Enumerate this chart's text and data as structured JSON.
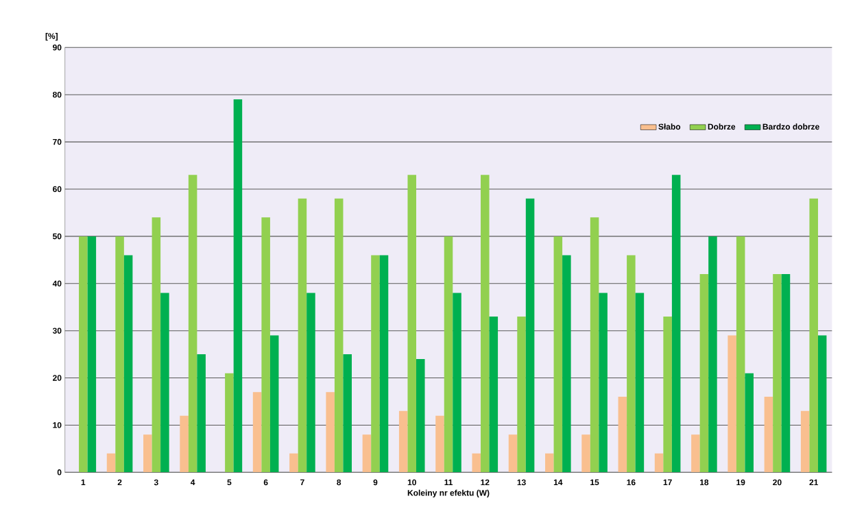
{
  "chart_data": {
    "type": "bar",
    "xlabel": "Koleiny nr efektu (W)",
    "ylabel": "[%]",
    "categories": [
      "1",
      "2",
      "3",
      "4",
      "5",
      "6",
      "7",
      "8",
      "9",
      "10",
      "11",
      "12",
      "13",
      "14",
      "15",
      "16",
      "17",
      "18",
      "19",
      "20",
      "21"
    ],
    "series": [
      {
        "name": "Słabo",
        "color": "#f9bf8f",
        "values": [
          0,
          4,
          8,
          12,
          0,
          17,
          4,
          17,
          8,
          13,
          12,
          4,
          8,
          4,
          8,
          16,
          4,
          8,
          29,
          16,
          13
        ]
      },
      {
        "name": "Dobrze",
        "color": "#92d050",
        "values": [
          50,
          50,
          54,
          63,
          21,
          54,
          58,
          58,
          46,
          63,
          50,
          63,
          33,
          50,
          54,
          46,
          33,
          42,
          50,
          42,
          58
        ]
      },
      {
        "name": "Bardzo dobrze",
        "color": "#00b050",
        "values": [
          50,
          46,
          38,
          25,
          79,
          29,
          38,
          25,
          46,
          24,
          38,
          33,
          58,
          46,
          38,
          38,
          63,
          50,
          21,
          42,
          29
        ]
      }
    ],
    "ylim": [
      0,
      90
    ],
    "yticks": [
      0,
      10,
      20,
      30,
      40,
      50,
      60,
      70,
      80,
      90
    ],
    "grid": "y",
    "legend": "top right"
  }
}
